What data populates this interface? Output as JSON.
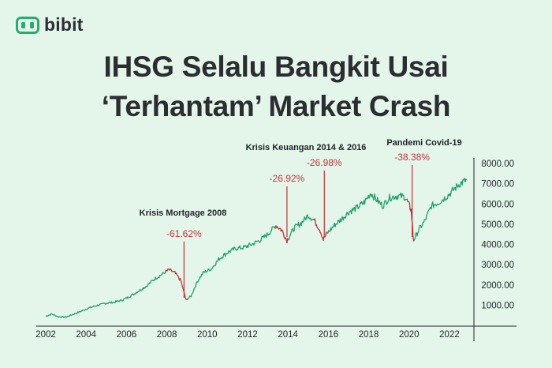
{
  "brand": {
    "name": "bibit",
    "icon": "bibit-logo-icon"
  },
  "header": {
    "title_line1": "IHSG Selalu Bangkit Usai",
    "title_line2": "‘Terhantam’ Market Crash"
  },
  "colors": {
    "background": "#e4f5ea",
    "line_normal": "#1ea06a",
    "line_crash": "#c0323a",
    "annotation": "#c0323a",
    "brand": "#27ae6e"
  },
  "chart_data": {
    "type": "line",
    "title": "",
    "xlabel": "",
    "ylabel": "",
    "xlim": [
      2002,
      2022.9
    ],
    "ylim": [
      0,
      8200
    ],
    "x_ticks": [
      "2002",
      "2004",
      "2006",
      "2008",
      "2010",
      "2012",
      "2014",
      "2016",
      "2018",
      "2020",
      "2022"
    ],
    "y_ticks": [
      "1000.00",
      "2000.00",
      "3000.00",
      "4000.00",
      "5000.00",
      "6000.00",
      "7000.00",
      "8000.00"
    ],
    "y_axis_position": "right",
    "grid": false,
    "series": [
      {
        "x": [
          2002.0,
          2002.3,
          2002.6,
          2003.0,
          2003.4,
          2003.8,
          2004.2,
          2004.6,
          2005.0,
          2005.4,
          2005.8,
          2006.2,
          2006.6,
          2007.0,
          2007.4,
          2007.8,
          2008.1,
          2008.4,
          2008.7,
          2008.95,
          2009.2,
          2009.5,
          2009.8,
          2010.2,
          2010.6,
          2011.0,
          2011.4,
          2011.8,
          2012.2,
          2012.6,
          2013.0,
          2013.4,
          2013.7,
          2013.95,
          2014.3,
          2014.7,
          2015.0,
          2015.3,
          2015.6,
          2015.75,
          2015.9,
          2016.3,
          2016.7,
          2017.0,
          2017.4,
          2017.8,
          2018.1,
          2018.4,
          2018.7,
          2019.0,
          2019.4,
          2019.8,
          2020.0,
          2020.1,
          2020.22,
          2020.5,
          2020.8,
          2021.1,
          2021.5,
          2021.9,
          2022.2,
          2022.5,
          2022.7,
          2022.85
        ],
        "y": [
          450,
          560,
          430,
          410,
          560,
          720,
          880,
          1000,
          1100,
          1150,
          1250,
          1450,
          1700,
          1950,
          2300,
          2550,
          2750,
          2600,
          2200,
          1250,
          1450,
          2150,
          2600,
          2800,
          3300,
          3600,
          3800,
          3850,
          4000,
          4200,
          4500,
          4950,
          4700,
          4200,
          4800,
          5100,
          5450,
          5200,
          4700,
          4250,
          4500,
          4950,
          5300,
          5600,
          5800,
          6100,
          6550,
          6200,
          5900,
          6300,
          6400,
          6350,
          5950,
          5700,
          4200,
          4750,
          5200,
          5900,
          6100,
          6400,
          6700,
          7000,
          7100,
          7200
        ],
        "values_note_hidden": true
      }
    ],
    "crash_periods": [
      [
        2007.9,
        2009.0
      ],
      [
        2013.4,
        2014.0
      ],
      [
        2015.2,
        2015.9
      ],
      [
        2019.85,
        2020.25
      ]
    ],
    "annotations": [
      {
        "label": "Krisis Mortgage 2008",
        "value": "-61.62%",
        "x": 2008.85
      },
      {
        "label": "Krisis Keuangan 2014 & 2016",
        "value": "-26.92%",
        "x": 2013.95
      },
      {
        "label": "",
        "value": "-26.98%",
        "x": 2015.8
      },
      {
        "label": "Pandemi Covid-19",
        "value": "-38.38%",
        "x": 2020.15
      }
    ]
  }
}
